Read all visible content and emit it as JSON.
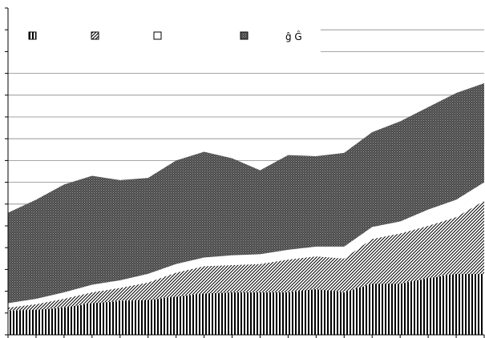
{
  "chart_data": {
    "type": "area",
    "stacked": true,
    "title": "",
    "xlabel": "",
    "ylabel": "",
    "legend_placement": "top",
    "x": [
      1,
      2,
      3,
      4,
      5,
      6,
      7,
      8,
      9,
      10,
      11,
      12,
      13,
      14,
      15,
      16,
      17,
      18
    ],
    "ylim": [
      0,
      15
    ],
    "grid": true,
    "series": [
      {
        "key": "vertical-stripes",
        "name": "",
        "pattern": "vertical-stripes",
        "values": [
          1.1,
          1.15,
          1.25,
          1.45,
          1.55,
          1.6,
          1.75,
          1.9,
          1.95,
          1.95,
          1.95,
          2.1,
          1.95,
          2.35,
          2.35,
          2.6,
          2.8,
          2.8
        ]
      },
      {
        "key": "diagonal-hatch",
        "name": "",
        "pattern": "diagonal-hatch",
        "values": [
          0.15,
          0.25,
          0.4,
          0.5,
          0.6,
          0.8,
          1.1,
          1.25,
          1.25,
          1.3,
          1.5,
          1.5,
          1.55,
          2.05,
          2.3,
          2.4,
          2.6,
          3.35
        ]
      },
      {
        "key": "white",
        "name": "",
        "pattern": "white",
        "values": [
          0.2,
          0.25,
          0.3,
          0.35,
          0.35,
          0.4,
          0.4,
          0.4,
          0.45,
          0.45,
          0.45,
          0.45,
          0.55,
          0.55,
          0.55,
          0.75,
          0.8,
          0.85
        ]
      },
      {
        "key": "dense-dots",
        "name": "",
        "pattern": "dense-dots",
        "values": [
          4.15,
          4.55,
          4.95,
          5.0,
          4.6,
          4.4,
          4.75,
          4.85,
          4.45,
          3.85,
          4.35,
          4.15,
          4.3,
          4.35,
          4.6,
          4.7,
          4.9,
          4.55
        ]
      }
    ],
    "legend_extra_text": "ĝ Ĝ"
  }
}
